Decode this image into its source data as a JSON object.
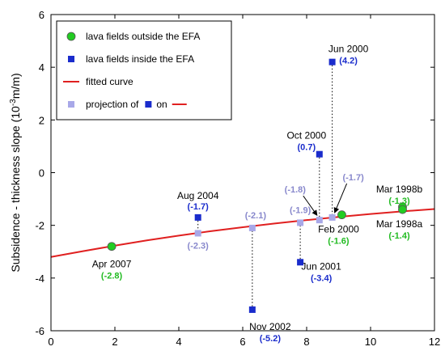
{
  "chart_data": {
    "type": "scatter",
    "ylabel": "Subsidence - thickness slope (10⁻³m/m)",
    "xlabel": "",
    "xlim": [
      0,
      12
    ],
    "ylim": [
      -6,
      6
    ],
    "xticks": [
      "0",
      "2",
      "4",
      "6",
      "8",
      "10",
      "12"
    ],
    "yticks": [
      "-6",
      "-4",
      "-2",
      "0",
      "2",
      "4",
      "6"
    ],
    "grid": false,
    "legend_position": "top-left",
    "colors": {
      "outside": "#22cc22",
      "inside": "#1a2ccc",
      "projection": "#a8a8e8",
      "curve": "#e02020",
      "outside_text": "#22bb22",
      "inside_text": "#1a2ccc",
      "projection_text": "#8888cc"
    },
    "legend": [
      {
        "key": "outside",
        "label": "lava fields outside the EFA"
      },
      {
        "key": "inside",
        "label": "lava fields inside the EFA"
      },
      {
        "key": "curve",
        "label": "fitted curve"
      },
      {
        "key": "projection",
        "label_pre": "projection of",
        "label_mid": "on"
      }
    ],
    "fitted_curve": {
      "x": [
        0,
        1,
        2,
        3,
        4,
        5,
        6,
        7,
        8,
        9,
        10,
        11,
        12
      ],
      "y": [
        -3.2,
        -2.98,
        -2.77,
        -2.57,
        -2.39,
        -2.22,
        -2.07,
        -1.93,
        -1.8,
        -1.68,
        -1.57,
        -1.47,
        -1.38
      ]
    },
    "outside_points": [
      {
        "x": 1.9,
        "y": -2.8,
        "label": "Apr 2007",
        "value": "(-2.8)"
      },
      {
        "x": 9.1,
        "y": -1.6,
        "label": "Feb 2000",
        "value": "(-1.6)"
      },
      {
        "x": 11.0,
        "y": -1.3,
        "label": "Mar 1998b",
        "value": "(-1.3)"
      },
      {
        "x": 11.0,
        "y": -1.4,
        "label": "Mar 1998a",
        "value": "(-1.4)"
      }
    ],
    "inside_points": [
      {
        "x": 4.6,
        "y": -1.7,
        "label": "Aug 2004",
        "value": "(-1.7)"
      },
      {
        "x": 6.3,
        "y": -5.2,
        "label": "Nov 2002",
        "value": "(-5.2)"
      },
      {
        "x": 7.8,
        "y": -3.4,
        "label": "Jun 2001",
        "value": "(-3.4)"
      },
      {
        "x": 8.4,
        "y": 0.7,
        "label": "Oct 2000",
        "value": "(0.7)"
      },
      {
        "x": 8.8,
        "y": 4.2,
        "label": "Jun 2000",
        "value": "(4.2)"
      }
    ],
    "projection_points": [
      {
        "x": 4.6,
        "y": -2.3,
        "value": "(-2.3)"
      },
      {
        "x": 6.3,
        "y": -2.1,
        "value": "(-2.1)"
      },
      {
        "x": 7.8,
        "y": -1.9,
        "value": "(-1.9)"
      },
      {
        "x": 8.4,
        "y": -1.8,
        "value": "(-1.8)"
      },
      {
        "x": 8.8,
        "y": -1.7,
        "value": "(-1.7)"
      }
    ]
  }
}
